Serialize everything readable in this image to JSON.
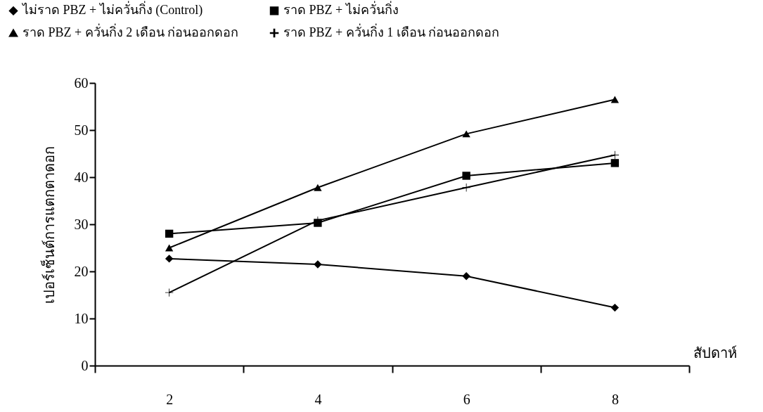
{
  "chart_data": {
    "type": "line",
    "xlabel": "สัปดาห์",
    "ylabel": "เปอร์เซ็นต์การแตกตาดอก",
    "categories": [
      "2",
      "4",
      "6",
      "8"
    ],
    "ylim": [
      0,
      60
    ],
    "yticks": [
      0,
      10,
      20,
      30,
      40,
      50,
      60
    ],
    "grid": false,
    "legend": "top",
    "line_style": "solid",
    "series": [
      {
        "name": "ไม่ราด PBZ + ไม่ควั่นกิ่ง (Control)",
        "color": "#000000",
        "marker": "diamond",
        "values": [
          22.7,
          21.5,
          19,
          12.3
        ]
      },
      {
        "name": "ราด PBZ + ไม่ควั่นกิ่ง",
        "color": "#000000",
        "marker": "square",
        "values": [
          28,
          30.3,
          40.3,
          43
        ]
      },
      {
        "name": "ราด PBZ + ควั่นกิ่ง 2 เดือน ก่อนออกดอก",
        "color": "#000000",
        "marker": "triangle",
        "values": [
          25,
          37.8,
          49.2,
          56.5
        ]
      },
      {
        "name": "ราด PBZ + ควั่นกิ่ง 1 เดือน ก่อนออกดอก",
        "color": "#000000",
        "marker": "cross",
        "values": [
          15.5,
          30.8,
          37.8,
          44.7
        ]
      }
    ]
  }
}
